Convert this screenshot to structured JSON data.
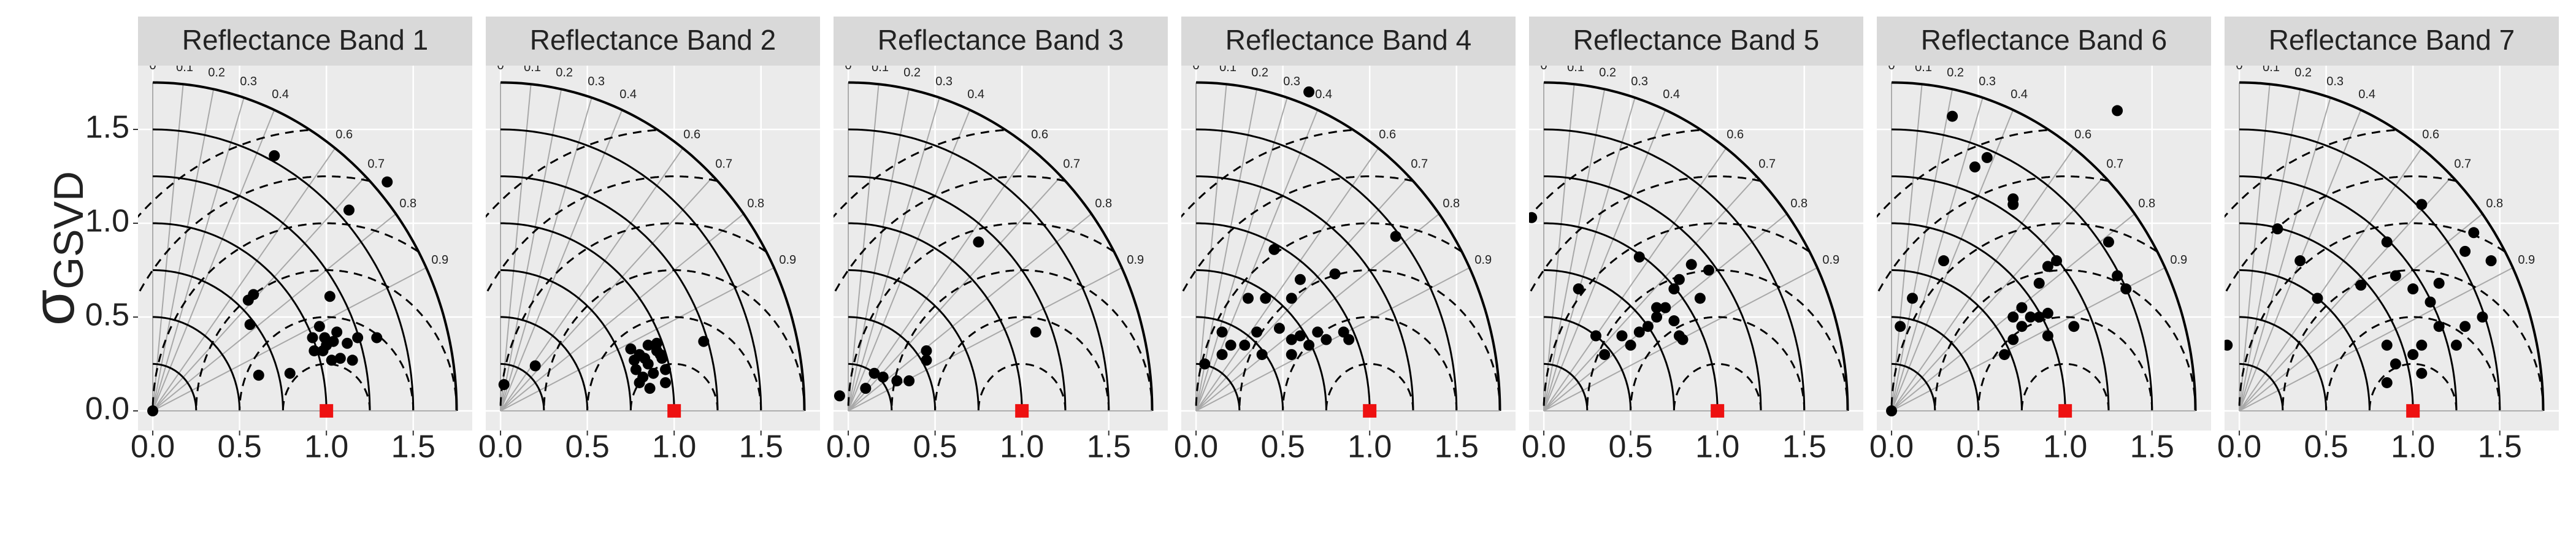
{
  "chart_data": [
    {
      "type": "scatter",
      "title": "Reflectance Band 1",
      "y_label": "σ",
      "y_label_subscript": "GSVD",
      "x": [
        0,
        0.7,
        1.35,
        1.13,
        0.58,
        0.55,
        0.56,
        1.02,
        0.61,
        0.79,
        0.96,
        0.92,
        0.99,
        1.04,
        0.98,
        1.03,
        1.08,
        1.12,
        1.15,
        1.18,
        1.29,
        0.93,
        1.06,
        1.0
      ],
      "values": [
        0,
        1.36,
        1.22,
        1.07,
        0.62,
        0.59,
        0.46,
        0.61,
        0.19,
        0.2,
        0.45,
        0.39,
        0.39,
        0.37,
        0.32,
        0.27,
        0.28,
        0.36,
        0.27,
        0.39,
        0.39,
        0.32,
        0.42,
        0.35
      ],
      "color": "#000000",
      "reference": {
        "x": 1,
        "y": 0,
        "color": "#ee1111"
      },
      "xlim": [
        -0.085,
        1.84
      ],
      "ylim": [
        -0.105,
        1.84
      ],
      "xticks": [
        {
          "value": 0,
          "label": "0.0"
        },
        {
          "value": 0.5,
          "label": "0.5"
        },
        {
          "value": 1,
          "label": "1.0"
        },
        {
          "value": 1.5,
          "label": "1.5"
        }
      ],
      "yticks": [
        {
          "value": 0,
          "label": "0.0"
        },
        {
          "value": 0.5,
          "label": "0.5"
        },
        {
          "value": 1,
          "label": "1.0"
        },
        {
          "value": 1.5,
          "label": "1.5"
        }
      ],
      "corr_ticks": [
        0,
        0.1,
        0.2,
        0.3,
        0.4,
        0.6,
        0.7,
        0.8,
        0.9
      ],
      "sd_arcs": [
        0.25,
        0.5,
        0.75,
        1,
        1.25,
        1.5,
        1.75
      ],
      "rmsd_arcs": [
        0.25,
        0.5,
        0.75,
        1,
        1.25,
        1.5
      ]
    },
    {
      "type": "scatter",
      "title": "Reflectance Band 2",
      "x": [
        0.02,
        0.2,
        0.75,
        0.8,
        0.85,
        0.9,
        0.93,
        0.78,
        0.82,
        0.88,
        0.95,
        0.8,
        0.85,
        0.9,
        0.92,
        0.86,
        0.83,
        1.17,
        0.95,
        0.77
      ],
      "values": [
        0.14,
        0.24,
        0.33,
        0.3,
        0.35,
        0.32,
        0.28,
        0.22,
        0.18,
        0.2,
        0.15,
        0.15,
        0.25,
        0.36,
        0.3,
        0.12,
        0.28,
        0.37,
        0.22,
        0.27
      ],
      "color": "#000000",
      "reference": {
        "x": 1,
        "y": 0,
        "color": "#ee1111"
      },
      "xlim": [
        -0.085,
        1.84
      ],
      "ylim": [
        -0.105,
        1.84
      ],
      "xticks": [
        {
          "value": 0,
          "label": "0.0"
        },
        {
          "value": 0.5,
          "label": "0.5"
        },
        {
          "value": 1,
          "label": "1.0"
        },
        {
          "value": 1.5,
          "label": "1.5"
        }
      ],
      "corr_ticks": [
        0,
        0.1,
        0.2,
        0.3,
        0.4,
        0.6,
        0.7,
        0.8,
        0.9
      ],
      "sd_arcs": [
        0.25,
        0.5,
        0.75,
        1,
        1.25,
        1.5,
        1.75
      ],
      "rmsd_arcs": [
        0.25,
        0.5,
        0.75,
        1,
        1.25,
        1.5
      ]
    },
    {
      "type": "scatter",
      "title": "Reflectance Band 3",
      "x": [
        -0.05,
        0.1,
        0.2,
        0.28,
        0.35,
        0.45,
        0.45,
        0.75,
        1.08,
        0.15
      ],
      "values": [
        0.08,
        0.12,
        0.18,
        0.16,
        0.16,
        0.27,
        0.32,
        0.9,
        0.42,
        0.2
      ],
      "color": "#000000",
      "reference": {
        "x": 1,
        "y": 0,
        "color": "#ee1111"
      },
      "xlim": [
        -0.085,
        1.84
      ],
      "ylim": [
        -0.105,
        1.84
      ],
      "xticks": [
        {
          "value": 0,
          "label": "0.0"
        },
        {
          "value": 0.5,
          "label": "0.5"
        },
        {
          "value": 1,
          "label": "1.0"
        },
        {
          "value": 1.5,
          "label": "1.5"
        }
      ],
      "corr_ticks": [
        0,
        0.1,
        0.2,
        0.3,
        0.4,
        0.6,
        0.7,
        0.8,
        0.9
      ],
      "sd_arcs": [
        0.25,
        0.5,
        0.75,
        1,
        1.25,
        1.5,
        1.75
      ],
      "rmsd_arcs": [
        0.25,
        0.5,
        0.75,
        1,
        1.25,
        1.5
      ]
    },
    {
      "type": "scatter",
      "title": "Reflectance Band 4",
      "x": [
        0.65,
        1.15,
        0.45,
        0.55,
        0.6,
        0.8,
        0.05,
        0.15,
        0.2,
        0.15,
        0.28,
        0.35,
        0.38,
        0.48,
        0.55,
        0.6,
        0.65,
        0.7,
        0.75,
        0.85,
        0.88,
        0.55,
        0.4,
        0.3
      ],
      "values": [
        1.7,
        0.93,
        0.86,
        0.6,
        0.7,
        0.73,
        0.25,
        0.42,
        0.35,
        0.3,
        0.35,
        0.42,
        0.3,
        0.44,
        0.38,
        0.4,
        0.35,
        0.42,
        0.38,
        0.42,
        0.38,
        0.3,
        0.6,
        0.6
      ],
      "color": "#000000",
      "reference": {
        "x": 1,
        "y": 0,
        "color": "#ee1111"
      },
      "xlim": [
        -0.085,
        1.84
      ],
      "ylim": [
        -0.105,
        1.84
      ],
      "xticks": [
        {
          "value": 0,
          "label": "0.0"
        },
        {
          "value": 0.5,
          "label": "0.5"
        },
        {
          "value": 1,
          "label": "1.0"
        },
        {
          "value": 1.5,
          "label": "1.5"
        }
      ],
      "corr_ticks": [
        0,
        0.1,
        0.2,
        0.3,
        0.4,
        0.6,
        0.7,
        0.8,
        0.9
      ],
      "sd_arcs": [
        0.25,
        0.5,
        0.75,
        1,
        1.25,
        1.5,
        1.75
      ],
      "rmsd_arcs": [
        0.25,
        0.5,
        0.75,
        1,
        1.25,
        1.5
      ]
    },
    {
      "type": "scatter",
      "title": "Reflectance Band 5",
      "x": [
        -0.07,
        0.2,
        0.35,
        0.45,
        0.5,
        0.55,
        0.6,
        0.65,
        0.7,
        0.75,
        0.8,
        0.9,
        0.75,
        0.78,
        0.78,
        0.85,
        0.95,
        0.55,
        0.3,
        0.65
      ],
      "values": [
        1.03,
        0.65,
        0.3,
        0.4,
        0.35,
        0.42,
        0.45,
        0.5,
        0.55,
        0.48,
        0.38,
        0.6,
        0.65,
        0.7,
        0.4,
        0.78,
        0.75,
        0.82,
        0.4,
        0.55
      ],
      "color": "#000000",
      "reference": {
        "x": 1,
        "y": 0,
        "color": "#ee1111"
      },
      "xlim": [
        -0.085,
        1.84
      ],
      "ylim": [
        -0.105,
        1.84
      ],
      "xticks": [
        {
          "value": 0,
          "label": "0.0"
        },
        {
          "value": 0.5,
          "label": "0.5"
        },
        {
          "value": 1,
          "label": "1.0"
        },
        {
          "value": 1.5,
          "label": "1.5"
        }
      ],
      "corr_ticks": [
        0,
        0.1,
        0.2,
        0.3,
        0.4,
        0.6,
        0.7,
        0.8,
        0.9
      ],
      "sd_arcs": [
        0.25,
        0.5,
        0.75,
        1,
        1.25,
        1.5,
        1.75
      ],
      "rmsd_arcs": [
        0.25,
        0.5,
        0.75,
        1,
        1.25,
        1.5
      ]
    },
    {
      "type": "scatter",
      "title": "Reflectance Band 6",
      "x": [
        0,
        0.05,
        0.12,
        0.3,
        0.35,
        0.55,
        0.48,
        0.7,
        0.7,
        1.3,
        0.95,
        0.9,
        0.85,
        0.75,
        0.8,
        0.85,
        0.9,
        0.7,
        0.9,
        0.7,
        1.05,
        1.3,
        1.35,
        1.25,
        0.65,
        0.75
      ],
      "values": [
        0,
        0.45,
        0.6,
        0.8,
        1.57,
        1.35,
        1.3,
        1.13,
        1.1,
        1.6,
        0.8,
        0.77,
        0.68,
        0.55,
        0.5,
        0.5,
        0.52,
        0.5,
        0.4,
        0.38,
        0.45,
        0.72,
        0.65,
        0.9,
        0.3,
        0.45
      ],
      "color": "#000000",
      "reference": {
        "x": 1,
        "y": 0,
        "color": "#ee1111"
      },
      "xlim": [
        -0.085,
        1.84
      ],
      "ylim": [
        -0.105,
        1.84
      ],
      "xticks": [
        {
          "value": 0,
          "label": "0.0"
        },
        {
          "value": 0.5,
          "label": "0.5"
        },
        {
          "value": 1,
          "label": "1.0"
        },
        {
          "value": 1.5,
          "label": "1.5"
        }
      ],
      "corr_ticks": [
        0,
        0.1,
        0.2,
        0.3,
        0.4,
        0.6,
        0.7,
        0.8,
        0.9
      ],
      "sd_arcs": [
        0.25,
        0.5,
        0.75,
        1,
        1.25,
        1.5,
        1.75
      ],
      "rmsd_arcs": [
        0.25,
        0.5,
        0.75,
        1,
        1.25,
        1.5
      ]
    },
    {
      "type": "scatter",
      "title": "Reflectance Band 7",
      "x": [
        -0.07,
        0.22,
        0.35,
        0.45,
        0.7,
        0.85,
        1.05,
        1.15,
        1.3,
        1.35,
        1.45,
        1.1,
        1.0,
        0.9,
        0.85,
        0.9,
        1.0,
        1.15,
        1.25,
        1.3,
        1.05,
        1.05,
        0.85,
        1.4
      ],
      "values": [
        0.35,
        0.97,
        0.8,
        0.6,
        0.67,
        0.9,
        1.1,
        0.68,
        0.85,
        0.95,
        0.8,
        0.58,
        0.65,
        0.72,
        0.35,
        0.25,
        0.3,
        0.45,
        0.35,
        0.45,
        0.2,
        0.35,
        0.15,
        0.5
      ],
      "color": "#000000",
      "reference": {
        "x": 1,
        "y": 0,
        "color": "#ee1111"
      },
      "xlim": [
        -0.085,
        1.84
      ],
      "ylim": [
        -0.105,
        1.84
      ],
      "xticks": [
        {
          "value": 0,
          "label": "0.0"
        },
        {
          "value": 0.5,
          "label": "0.5"
        },
        {
          "value": 1,
          "label": "1.0"
        },
        {
          "value": 1.5,
          "label": "1.5"
        }
      ],
      "corr_ticks": [
        0,
        0.1,
        0.2,
        0.3,
        0.4,
        0.6,
        0.7,
        0.8,
        0.9
      ],
      "sd_arcs": [
        0.25,
        0.5,
        0.75,
        1,
        1.25,
        1.5,
        1.75
      ],
      "rmsd_arcs": [
        0.25,
        0.5,
        0.75,
        1,
        1.25,
        1.5
      ]
    }
  ]
}
